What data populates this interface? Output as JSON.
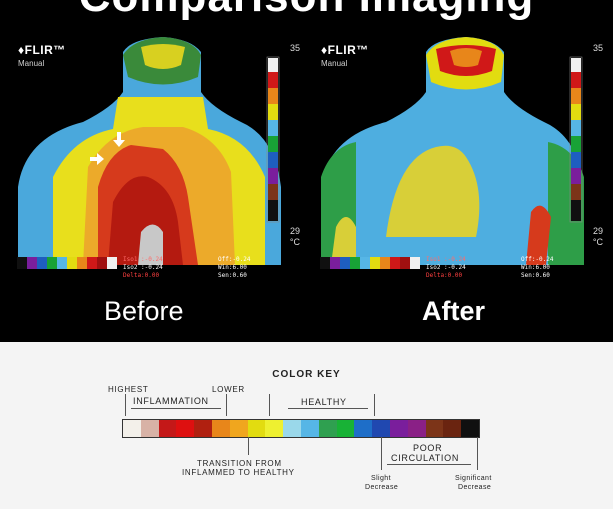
{
  "before": {
    "brand": "♦FLIR™",
    "mode": "Manual",
    "scale_max": "35",
    "scale_min": "29",
    "scale_unit": "°C",
    "iso1": "Iso1 :-0.24",
    "iso2": "Iso2 :-0.24",
    "delta": "Delta:0.00",
    "off": "Off:-0.24",
    "win": "Win:6.00",
    "sen": "Sen:0.60",
    "caption": "Before"
  },
  "after": {
    "brand": "♦FLIR™",
    "mode": "Manual",
    "scale_max": "35",
    "scale_min": "29",
    "scale_unit": "°C",
    "iso1": "Iso1 :-0.24",
    "iso2": "Iso2 :-0.24",
    "delta": "Delta:0.00",
    "off": "Off:-0.24",
    "win": "Win:6.00",
    "sen": "Sen:0.60",
    "caption": "After"
  },
  "color_key": {
    "title": "COLOR KEY",
    "highest": "HIGHEST",
    "lower": "LOWER",
    "inflammation": "INFLAMMATION",
    "healthy": "HEALTHY",
    "transition_line1": "TRANSITION FROM",
    "transition_line2": "INFLAMMED TO HEALTHY",
    "poor_line1": "POOR",
    "poor_line2": "CIRCULATION",
    "slight_line1": "Slight",
    "slight_line2": "Decrease",
    "significant_line1": "Significant",
    "significant_line2": "Decrease",
    "swatches": [
      "#f3f0ea",
      "#d8b2a6",
      "#c41818",
      "#de1010",
      "#b02010",
      "#e8861a",
      "#f0a61e",
      "#e2dc10",
      "#eef030",
      "#9ad8ea",
      "#56b6e6",
      "#2fa050",
      "#18b236",
      "#1e6ec8",
      "#2048b0",
      "#7a1e9c",
      "#8a2086",
      "#7c3418",
      "#6a2410",
      "#101010"
    ]
  }
}
